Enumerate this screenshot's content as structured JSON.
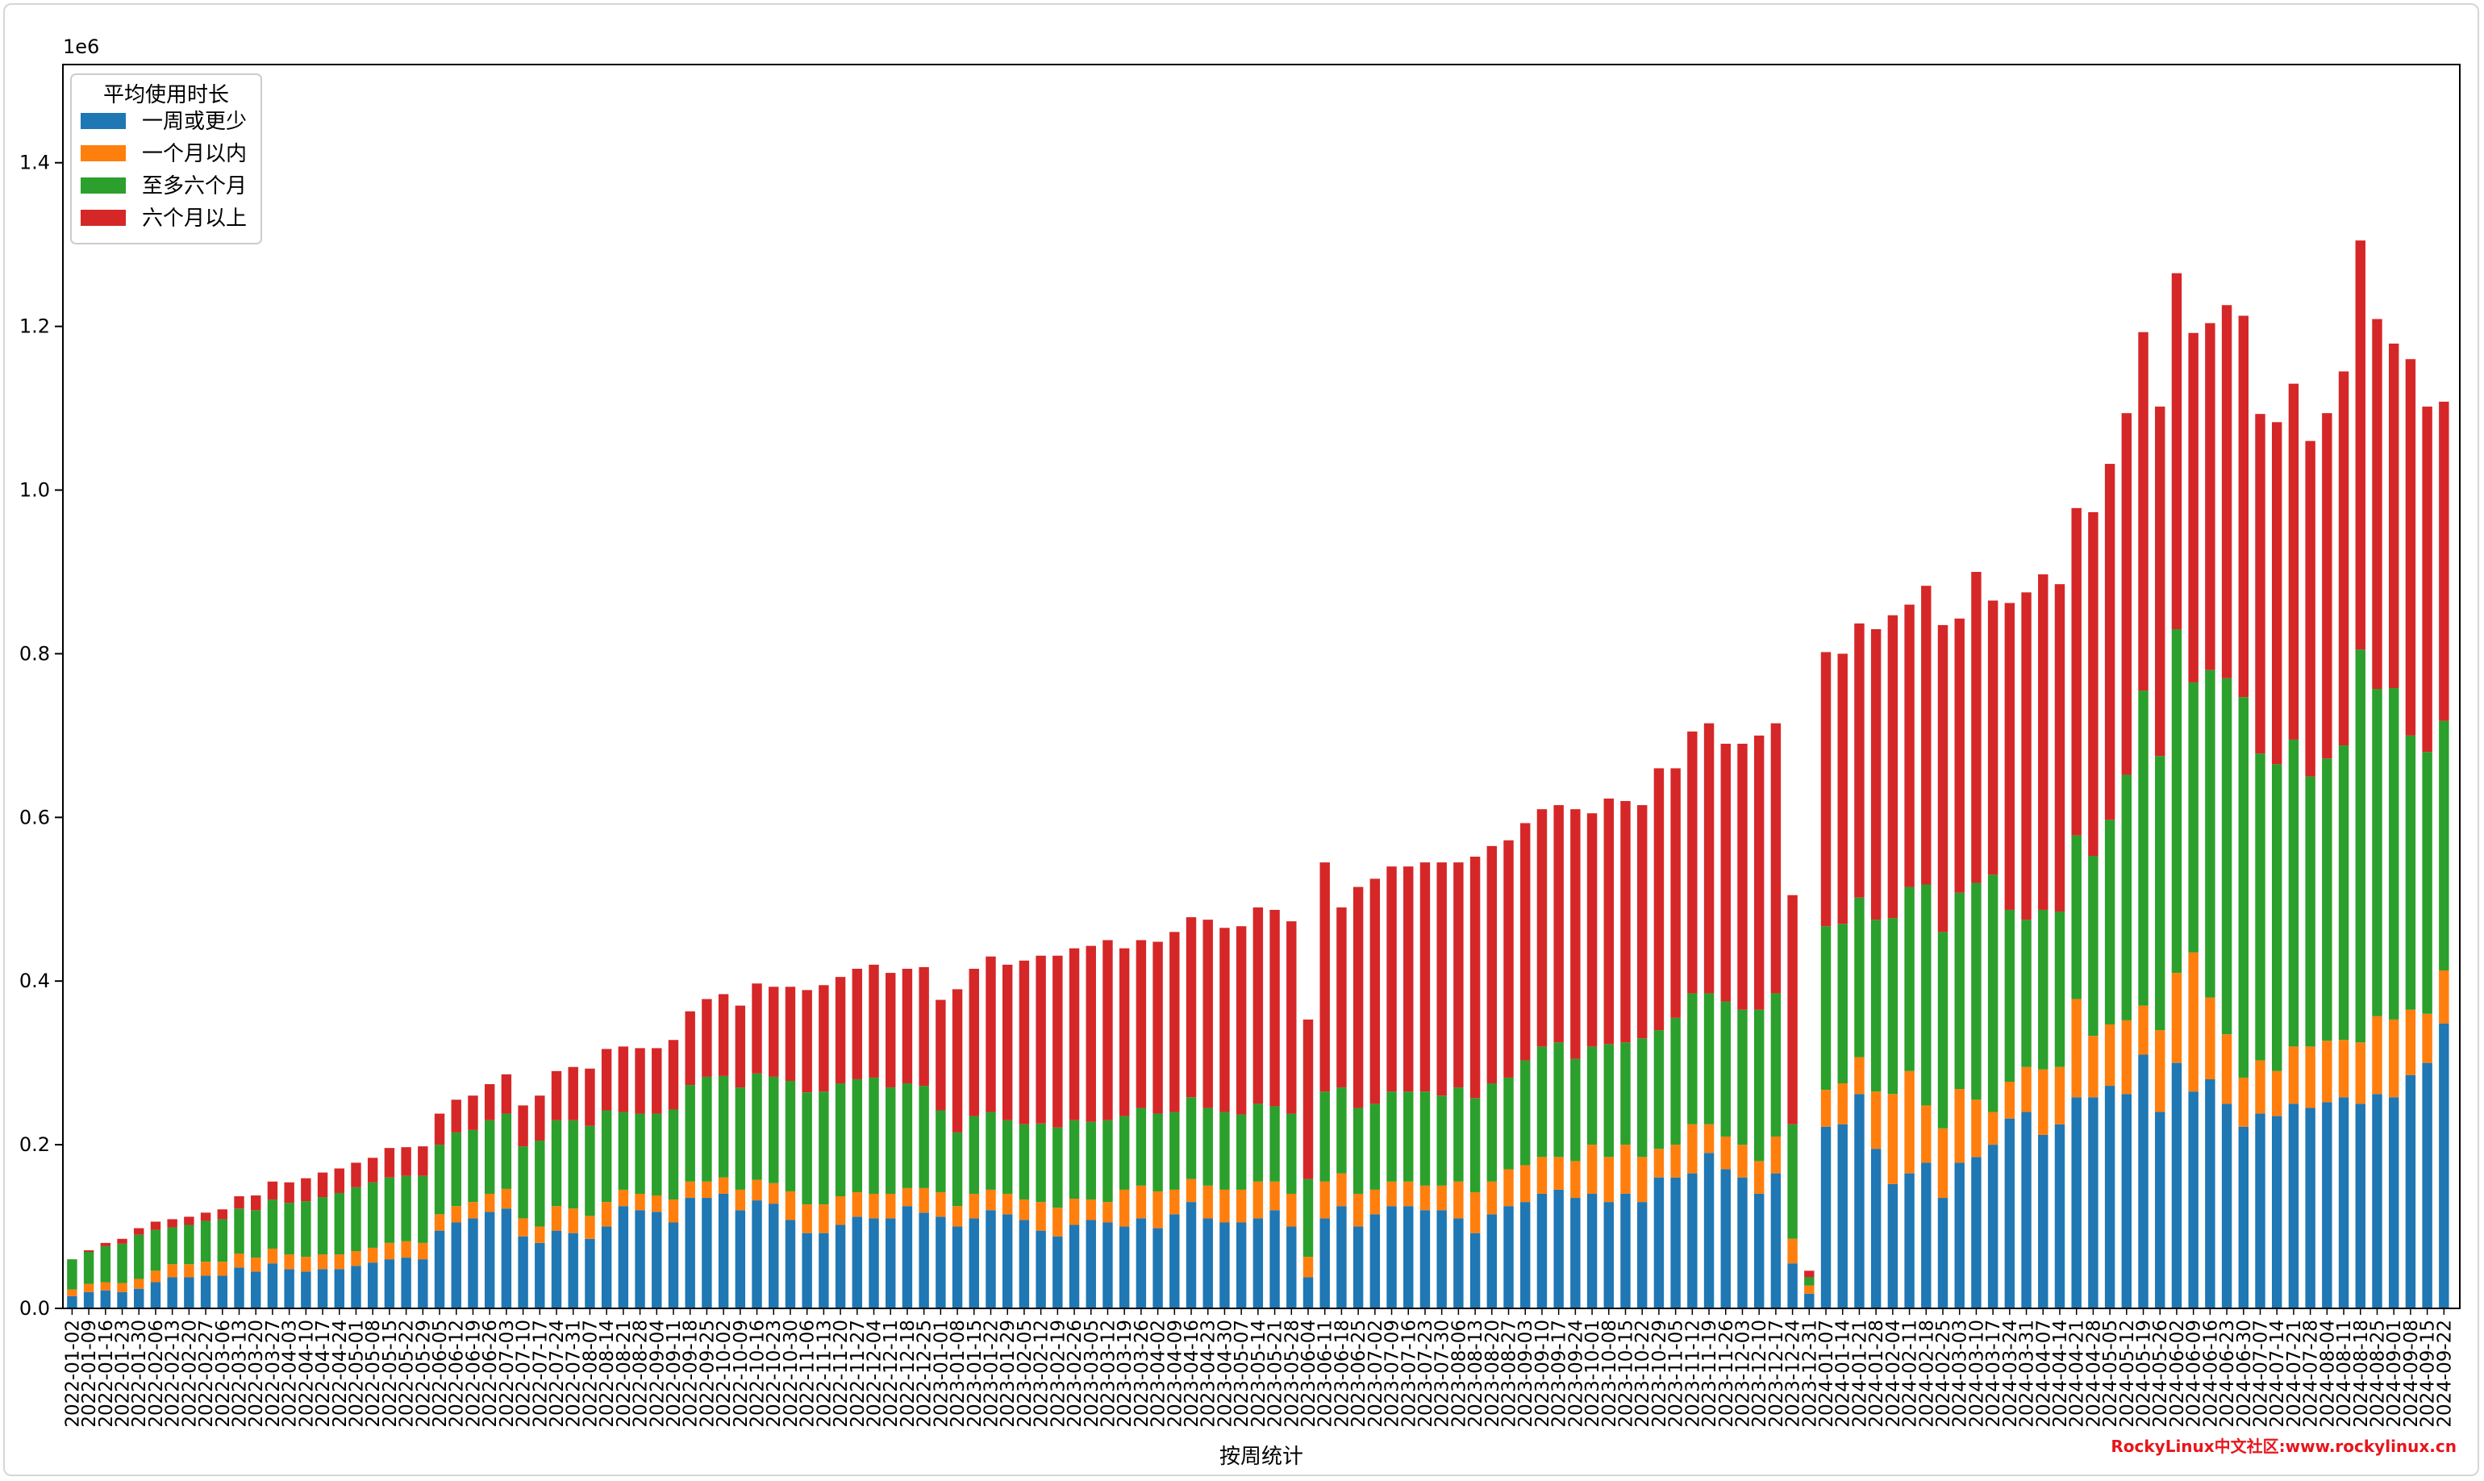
{
  "chart_data": {
    "type": "bar",
    "stacked": true,
    "title": "",
    "xlabel": "按周统计",
    "ylabel": "",
    "y_offset_label": "1e6",
    "ylim": [
      0,
      1520000
    ],
    "y_ticks": [
      "0.0",
      "0.2",
      "0.4",
      "0.6",
      "0.8",
      "1.0",
      "1.2",
      "1.4"
    ],
    "grid": false,
    "legend": {
      "title": "平均使用时长",
      "position": "top-left"
    },
    "colors": [
      "#1f77b4",
      "#ff7f0e",
      "#2ca02c",
      "#d62728"
    ],
    "start_date": "2022-01-02",
    "categories_note": "weekly, every week from 2022-01-02 to 2024-07-28 (light gray watermark text overlaps some labels)",
    "series": [
      {
        "name": "一周或更少",
        "values": [
          15000,
          20000,
          22000,
          20000,
          24000,
          32000,
          38000,
          38000,
          40000,
          40000,
          50000,
          45000,
          55000,
          48000,
          45000,
          48000,
          48000,
          52000,
          56000,
          60000,
          62000,
          60000,
          95000,
          105000,
          110000,
          118000,
          122000,
          88000,
          80000,
          95000,
          92000,
          85000,
          100000,
          125000,
          120000,
          118000,
          105000,
          135000,
          135000,
          140000,
          120000,
          132000,
          128000,
          108000,
          92000,
          92000,
          102000,
          112000,
          110000,
          110000,
          125000,
          117000,
          112000,
          100000,
          110000,
          120000,
          115000,
          108000,
          95000,
          88000,
          102000,
          108000,
          105000,
          100000,
          110000,
          98000,
          115000,
          130000,
          110000,
          105000,
          105000,
          110000,
          120000,
          100000,
          38000,
          110000,
          125000,
          100000,
          115000,
          125000,
          125000,
          120000,
          120000,
          110000,
          92000,
          115000,
          125000,
          130000,
          140000,
          145000,
          135000,
          140000,
          130000,
          140000,
          130000,
          160000,
          160000,
          165000,
          190000,
          170000,
          160000,
          140000,
          165000,
          55000,
          18000,
          222000,
          225000,
          262000,
          195000,
          152000,
          165000,
          178000,
          135000,
          178000,
          185000,
          200000,
          232000,
          240000,
          212000,
          225000,
          258000,
          258000,
          272000,
          262000,
          310000,
          240000,
          300000,
          265000,
          280000,
          250000,
          222000,
          238000,
          235000,
          250000,
          245000,
          252000,
          258000,
          250000,
          262000,
          258000,
          285000,
          300000,
          348000
        ]
      },
      {
        "name": "一个月以内",
        "values": [
          8000,
          10000,
          10000,
          11000,
          12000,
          14000,
          16000,
          16000,
          17000,
          17000,
          17000,
          17000,
          18000,
          18000,
          18000,
          18000,
          18000,
          18000,
          18000,
          20000,
          20000,
          20000,
          20000,
          20000,
          20000,
          22000,
          24000,
          22000,
          20000,
          30000,
          30000,
          28000,
          30000,
          20000,
          20000,
          20000,
          28000,
          20000,
          20000,
          20000,
          25000,
          25000,
          25000,
          35000,
          35000,
          35000,
          35000,
          30000,
          30000,
          30000,
          22000,
          30000,
          30000,
          25000,
          30000,
          25000,
          25000,
          25000,
          35000,
          35000,
          32000,
          25000,
          25000,
          45000,
          40000,
          45000,
          30000,
          28000,
          40000,
          40000,
          40000,
          45000,
          35000,
          40000,
          25000,
          45000,
          40000,
          40000,
          30000,
          30000,
          30000,
          30000,
          30000,
          45000,
          50000,
          40000,
          45000,
          45000,
          45000,
          40000,
          45000,
          60000,
          55000,
          60000,
          55000,
          35000,
          40000,
          60000,
          35000,
          40000,
          40000,
          40000,
          45000,
          30000,
          10000,
          45000,
          50000,
          45000,
          70000,
          110000,
          125000,
          70000,
          85000,
          90000,
          70000,
          40000,
          45000,
          55000,
          80000,
          70000,
          120000,
          75000,
          75000,
          90000,
          60000,
          100000,
          110000,
          170000,
          100000,
          85000,
          60000,
          65000,
          55000,
          70000,
          75000,
          75000,
          70000,
          75000,
          95000,
          95000,
          80000,
          60000,
          65000
        ]
      },
      {
        "name": "至多六个月",
        "values": [
          37000,
          39000,
          44000,
          48000,
          54000,
          50000,
          45000,
          48000,
          50000,
          52000,
          55000,
          58000,
          60000,
          63000,
          68000,
          70000,
          75000,
          78000,
          80000,
          80000,
          80000,
          82000,
          85000,
          90000,
          88000,
          90000,
          92000,
          88000,
          105000,
          105000,
          108000,
          110000,
          112000,
          95000,
          98000,
          100000,
          110000,
          118000,
          128000,
          124000,
          125000,
          130000,
          130000,
          135000,
          137000,
          138000,
          138000,
          138000,
          142000,
          130000,
          128000,
          125000,
          100000,
          90000,
          95000,
          95000,
          90000,
          92000,
          96000,
          98000,
          96000,
          95000,
          100000,
          90000,
          95000,
          95000,
          95000,
          100000,
          95000,
          95000,
          92000,
          95000,
          92000,
          98000,
          95000,
          110000,
          105000,
          105000,
          105000,
          110000,
          110000,
          115000,
          110000,
          115000,
          115000,
          120000,
          112000,
          128000,
          135000,
          140000,
          125000,
          120000,
          138000,
          125000,
          145000,
          145000,
          155000,
          160000,
          160000,
          165000,
          165000,
          185000,
          175000,
          140000,
          10000,
          200000,
          195000,
          195000,
          210000,
          215000,
          225000,
          270000,
          240000,
          240000,
          265000,
          290000,
          210000,
          180000,
          195000,
          190000,
          200000,
          220000,
          250000,
          300000,
          385000,
          335000,
          420000,
          330000,
          400000,
          435000,
          465000,
          375000,
          375000,
          375000,
          330000,
          345000,
          360000,
          480000,
          400000,
          405000,
          335000,
          320000,
          305000
        ]
      },
      {
        "name": "六个月以上",
        "values": [
          0,
          2000,
          4000,
          6000,
          8000,
          10000,
          10000,
          10000,
          10000,
          12000,
          15000,
          18000,
          22000,
          25000,
          28000,
          30000,
          30000,
          30000,
          30000,
          36000,
          35000,
          36000,
          38000,
          40000,
          42000,
          44000,
          48000,
          50000,
          55000,
          60000,
          65000,
          70000,
          75000,
          80000,
          80000,
          80000,
          85000,
          90000,
          95000,
          100000,
          100000,
          110000,
          110000,
          115000,
          125000,
          130000,
          130000,
          135000,
          138000,
          140000,
          140000,
          145000,
          135000,
          175000,
          180000,
          190000,
          190000,
          200000,
          205000,
          210000,
          210000,
          215000,
          220000,
          205000,
          205000,
          210000,
          220000,
          220000,
          230000,
          225000,
          230000,
          240000,
          240000,
          235000,
          195000,
          280000,
          220000,
          270000,
          275000,
          275000,
          275000,
          280000,
          285000,
          275000,
          295000,
          290000,
          290000,
          290000,
          290000,
          290000,
          305000,
          285000,
          300000,
          295000,
          285000,
          320000,
          305000,
          320000,
          330000,
          315000,
          325000,
          335000,
          330000,
          280000,
          8000,
          335000,
          330000,
          335000,
          355000,
          370000,
          345000,
          365000,
          375000,
          335000,
          380000,
          335000,
          375000,
          400000,
          410000,
          400000,
          400000,
          420000,
          435000,
          442000,
          438000,
          427000,
          435000,
          427000,
          424000,
          456000,
          466000,
          415000,
          418000,
          435000,
          410000,
          422000,
          457000,
          500000,
          452000,
          421000,
          460000,
          422000,
          390000
        ]
      }
    ]
  },
  "credit": "RockyLinux中文社区:www.rockylinux.cn"
}
